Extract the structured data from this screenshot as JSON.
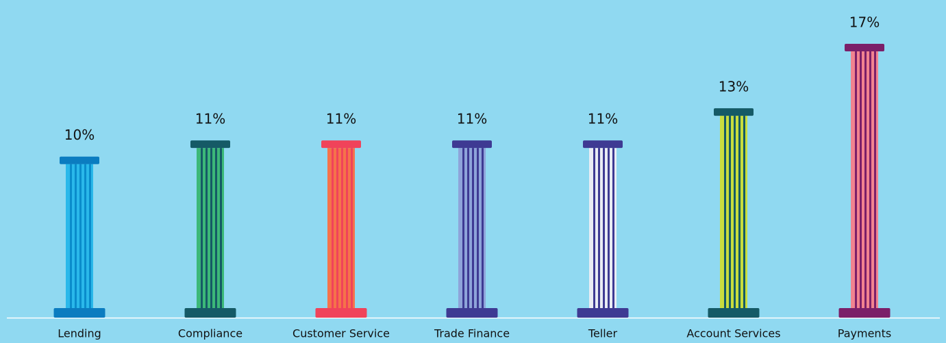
{
  "chart_data": {
    "type": "pillar",
    "categories": [
      "Lending",
      "Compliance",
      "Customer Service",
      "Trade Finance",
      "Teller",
      "Account Services",
      "Payments"
    ],
    "values": [
      10,
      11,
      11,
      11,
      11,
      13,
      17
    ],
    "value_labels": [
      "10%",
      "11%",
      "11%",
      "11%",
      "11%",
      "13%",
      "17%"
    ],
    "cap_colors": [
      "#0b7cc0",
      "#155a66",
      "#f0435a",
      "#3e3a93",
      "#3e3a93",
      "#155a66",
      "#7b1f69"
    ],
    "shaft_colors": [
      "#2ab8ea",
      "#3cb878",
      "#f5734a",
      "#8ea4da",
      "#e9ecf4",
      "#c9dc3e",
      "#f1838f"
    ],
    "stripe_colors": [
      "#0a8ccb",
      "#155a66",
      "#f0435a",
      "#3e3a93",
      "#3e3a93",
      "#155a66",
      "#7b1f69"
    ]
  }
}
